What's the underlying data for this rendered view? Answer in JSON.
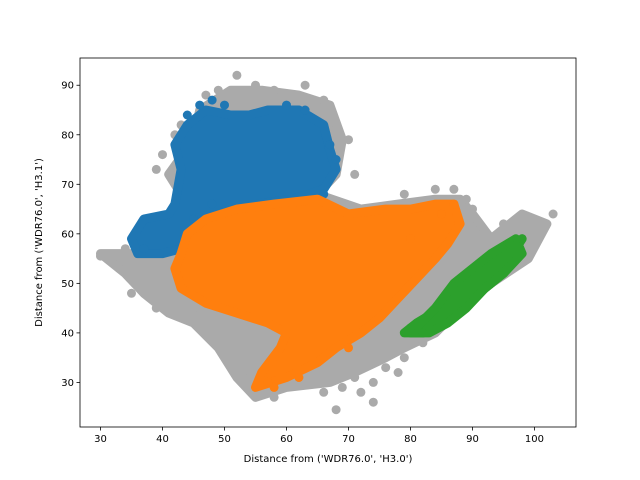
{
  "chart_data": {
    "type": "scatter",
    "title": "",
    "xlabel": "Distance from ('WDR76.0', 'H3.0')",
    "ylabel": "Distance from ('WDR76.0', 'H3.1')",
    "xlim": [
      26.7,
      106.7
    ],
    "ylim": [
      21.0,
      95.5
    ],
    "xticks": [
      30,
      40,
      50,
      60,
      70,
      80,
      90,
      100
    ],
    "yticks": [
      30,
      40,
      50,
      60,
      70,
      80,
      90
    ],
    "grid": false,
    "colors": {
      "background": "#aaaaaa",
      "blue": "#1f77b4",
      "orange": "#ff7f0e",
      "green": "#2ca02c"
    },
    "series": [
      {
        "color": "background",
        "regions": [
          {
            "polygon": [
              [
                36,
                56
              ],
              [
                41,
                60
              ],
              [
                44,
                66
              ],
              [
                41,
                72
              ],
              [
                45,
                79
              ],
              [
                46,
                85
              ],
              [
                51,
                89
              ],
              [
                56,
                89
              ],
              [
                62,
                88
              ],
              [
                67,
                86
              ],
              [
                69,
                79
              ],
              [
                68,
                72
              ],
              [
                65,
                68
              ],
              [
                72,
                65
              ],
              [
                78,
                66
              ],
              [
                84,
                67
              ],
              [
                88,
                67
              ],
              [
                90,
                64
              ],
              [
                93,
                59
              ],
              [
                98,
                64
              ],
              [
                102,
                62
              ],
              [
                99,
                55
              ],
              [
                93,
                50
              ],
              [
                88,
                45
              ],
              [
                84,
                40
              ],
              [
                79,
                37
              ],
              [
                76,
                35
              ],
              [
                71,
                32
              ],
              [
                67,
                30
              ],
              [
                60,
                29
              ],
              [
                55,
                27
              ],
              [
                52,
                31
              ],
              [
                49,
                37
              ],
              [
                45,
                42
              ],
              [
                41,
                44
              ],
              [
                37,
                48
              ],
              [
                34,
                52
              ],
              [
                30,
                56
              ]
            ]
          }
        ],
        "points": [
          [
            30,
            55.5
          ],
          [
            33,
            53
          ],
          [
            34,
            57
          ],
          [
            37,
            50
          ],
          [
            38,
            62
          ],
          [
            39,
            73
          ],
          [
            40,
            76
          ],
          [
            42,
            80
          ],
          [
            43,
            82
          ],
          [
            47,
            88
          ],
          [
            49,
            89
          ],
          [
            52,
            92
          ],
          [
            55,
            90
          ],
          [
            58,
            89
          ],
          [
            63,
            90
          ],
          [
            66,
            87
          ],
          [
            67,
            85
          ],
          [
            68,
            81
          ],
          [
            70,
            79
          ],
          [
            71,
            72
          ],
          [
            73,
            65
          ],
          [
            79,
            68
          ],
          [
            84,
            69
          ],
          [
            87,
            69
          ],
          [
            89,
            67
          ],
          [
            90,
            65
          ],
          [
            95,
            62
          ],
          [
            99,
            63
          ],
          [
            103,
            64
          ],
          [
            101,
            60
          ],
          [
            98,
            55
          ],
          [
            78,
            32
          ],
          [
            74,
            30
          ],
          [
            71,
            31
          ],
          [
            69,
            29
          ],
          [
            66,
            28
          ],
          [
            61,
            30
          ],
          [
            58,
            27
          ],
          [
            53,
            31
          ],
          [
            51,
            36
          ],
          [
            46,
            45
          ],
          [
            42,
            44
          ],
          [
            39,
            45
          ],
          [
            35,
            48
          ],
          [
            72,
            28
          ],
          [
            74,
            26
          ],
          [
            68,
            24.5
          ],
          [
            76,
            33
          ],
          [
            79,
            35
          ],
          [
            82,
            38
          ]
        ]
      },
      {
        "color": "blue",
        "regions": [
          {
            "polygon": [
              [
                35,
                59
              ],
              [
                37,
                63
              ],
              [
                41,
                64
              ],
              [
                42,
                66
              ],
              [
                43,
                73
              ],
              [
                42,
                78
              ],
              [
                44,
                82
              ],
              [
                47,
                85
              ],
              [
                51,
                84
              ],
              [
                54,
                84
              ],
              [
                57,
                85
              ],
              [
                62,
                85
              ],
              [
                66,
                82
              ],
              [
                67,
                77
              ],
              [
                68,
                73
              ],
              [
                66,
                69
              ],
              [
                61,
                67
              ],
              [
                55,
                66
              ],
              [
                49,
                64
              ],
              [
                45,
                59
              ],
              [
                43,
                57
              ],
              [
                40,
                56
              ],
              [
                36,
                56
              ]
            ]
          }
        ],
        "points": [
          [
            44,
            84
          ],
          [
            46,
            86
          ],
          [
            48,
            87
          ],
          [
            50,
            86
          ],
          [
            60,
            86
          ],
          [
            63,
            85
          ],
          [
            67,
            78
          ],
          [
            68,
            75
          ],
          [
            66,
            68
          ],
          [
            48,
            66
          ],
          [
            45,
            63
          ],
          [
            37,
            57
          ]
        ]
      },
      {
        "color": "orange",
        "regions": [
          {
            "polygon": [
              [
                43,
                56
              ],
              [
                44,
                60
              ],
              [
                47,
                63
              ],
              [
                52,
                65
              ],
              [
                58,
                66
              ],
              [
                65,
                67
              ],
              [
                70,
                64
              ],
              [
                76,
                65
              ],
              [
                80,
                65
              ],
              [
                84,
                66
              ],
              [
                87,
                66
              ],
              [
                88,
                62
              ],
              [
                86,
                58
              ],
              [
                84,
                55
              ],
              [
                81,
                51
              ],
              [
                78,
                47
              ],
              [
                75,
                43
              ],
              [
                72,
                40
              ],
              [
                68,
                37
              ],
              [
                65,
                34
              ],
              [
                60,
                31
              ],
              [
                55,
                29
              ],
              [
                56,
                32
              ],
              [
                59,
                37
              ],
              [
                60,
                40
              ],
              [
                57,
                42
              ],
              [
                52,
                44
              ],
              [
                47,
                46
              ],
              [
                43,
                49
              ],
              [
                42,
                53
              ]
            ]
          }
        ],
        "points": [
          [
            87,
            66
          ],
          [
            85,
            64
          ],
          [
            80,
            59
          ],
          [
            57,
            30
          ],
          [
            58,
            29
          ],
          [
            62,
            31
          ],
          [
            70,
            37
          ]
        ]
      },
      {
        "color": "green",
        "regions": [
          {
            "polygon": [
              [
                79,
                40
              ],
              [
                81,
                42
              ],
              [
                85,
                45
              ],
              [
                88,
                47
              ],
              [
                91,
                51
              ],
              [
                95,
                55
              ],
              [
                98,
                59
              ],
              [
                97,
                57
              ],
              [
                95,
                53
              ],
              [
                93,
                50
              ],
              [
                91,
                48
              ],
              [
                88,
                45
              ],
              [
                85,
                42
              ],
              [
                82,
                40
              ]
            ]
          },
          {
            "polygon": [
              [
                80,
                40
              ],
              [
                84,
                45
              ],
              [
                87,
                50
              ],
              [
                90,
                53
              ],
              [
                93,
                56
              ],
              [
                97,
                59
              ],
              [
                98,
                56
              ],
              [
                95,
                52
              ],
              [
                92,
                49
              ],
              [
                89,
                45
              ],
              [
                86,
                42
              ],
              [
                83,
                40
              ]
            ]
          }
        ],
        "points": [
          [
            98,
            59
          ],
          [
            96,
            58
          ],
          [
            80,
            41
          ],
          [
            82,
            40
          ]
        ]
      }
    ]
  }
}
